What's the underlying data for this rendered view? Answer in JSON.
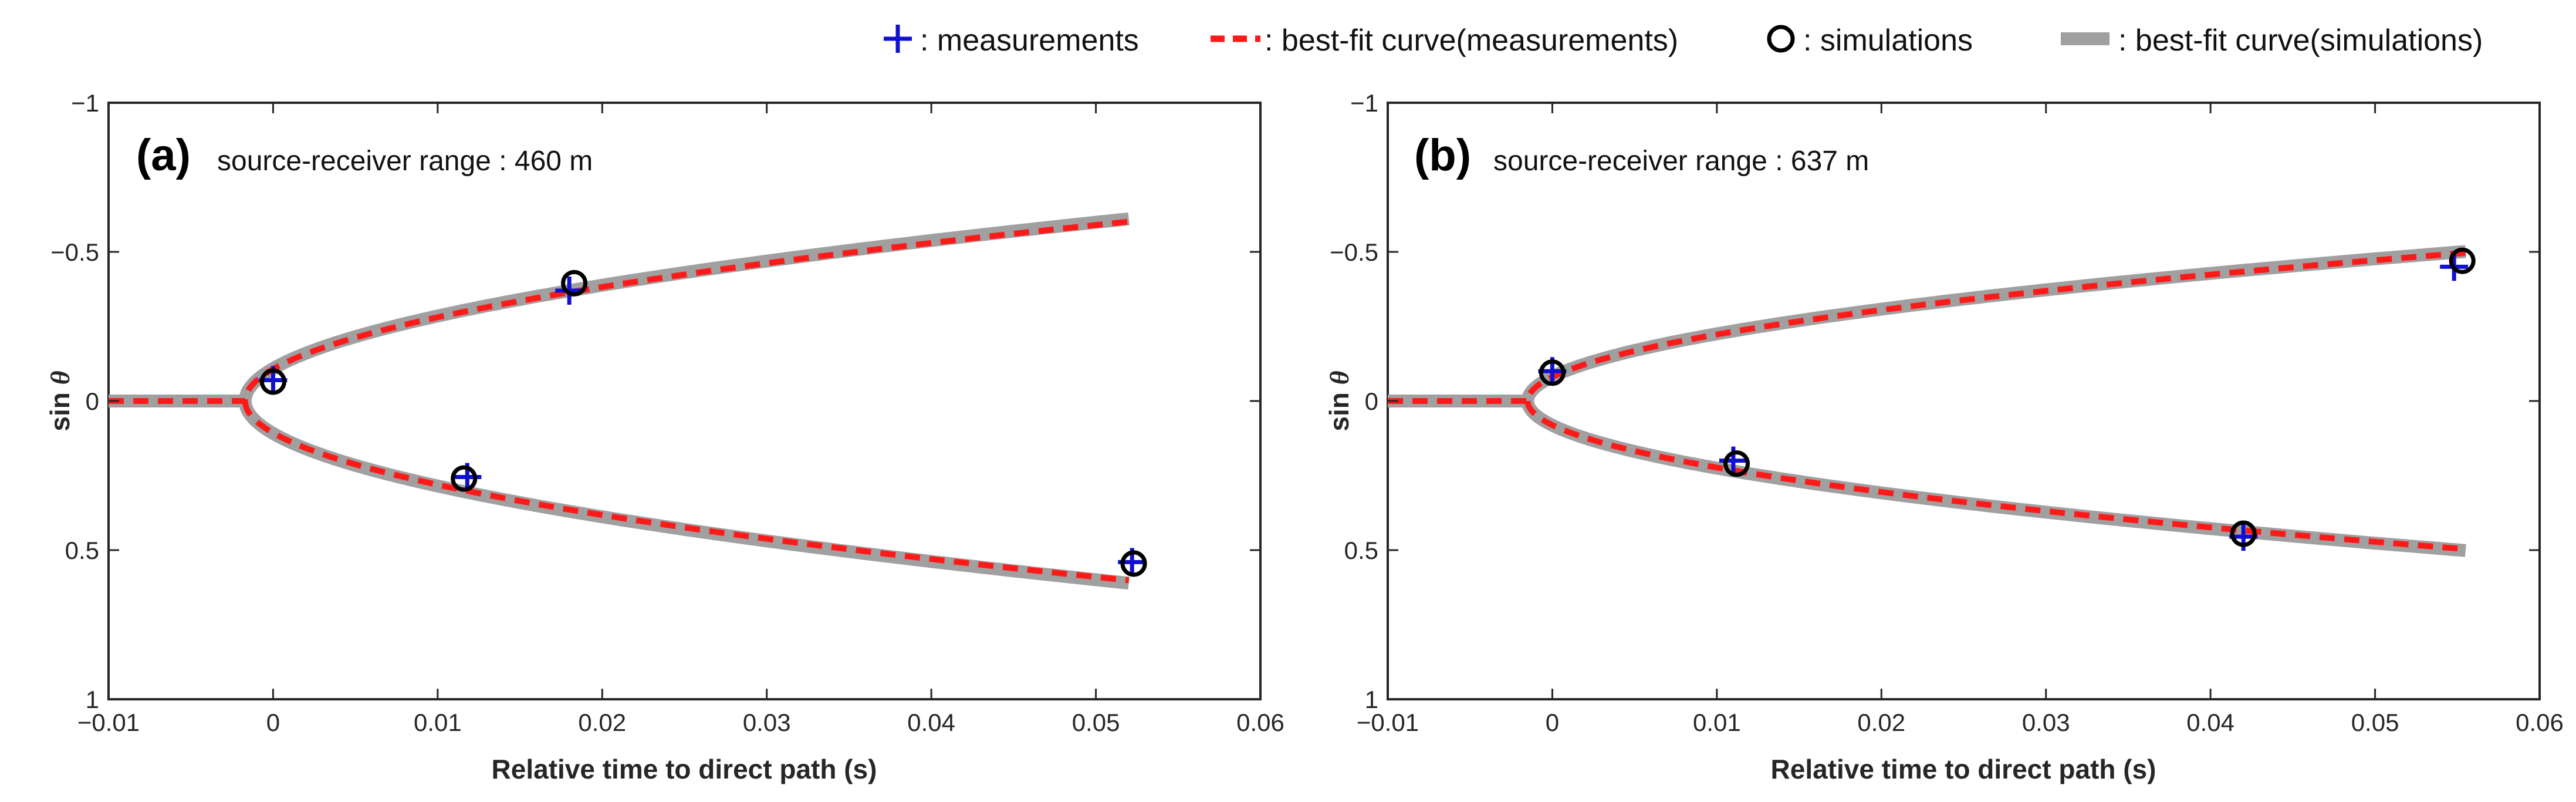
{
  "legend": {
    "placement": "top",
    "items": [
      {
        "marker": "plus",
        "color": "#1010d0",
        "label": ": measurements"
      },
      {
        "marker": "dashed-line",
        "color": "#ff1a1a",
        "label": ": best-fit curve(measurements)"
      },
      {
        "marker": "circle",
        "color": "#000000",
        "label": ": simulations"
      },
      {
        "marker": "thick-line",
        "color": "#a0a0a0",
        "label": ": best-fit curve(simulations)"
      }
    ]
  },
  "colors": {
    "measurement": "#1010d0",
    "fit_measurement": "#ff1a1a",
    "simulation": "#000000",
    "fit_simulation": "#a0a0a0",
    "axis": "#262626"
  },
  "chart_data": [
    {
      "type": "scatter",
      "panel": "(a)",
      "annotation": "source-receiver range : 460 m",
      "xlabel": "Relative time to direct path (s)",
      "ylabel": "sin θ",
      "ylabel_plain": "sin ",
      "ylabel_italic": "θ",
      "xlim": [
        -0.01,
        0.06
      ],
      "ylim": [
        -1,
        1
      ],
      "y_reversed": true,
      "xticks": [
        -0.01,
        0,
        0.01,
        0.02,
        0.03,
        0.04,
        0.05,
        0.06
      ],
      "xtick_labels": [
        "−0.01",
        "0",
        "0.01",
        "0.02",
        "0.03",
        "0.04",
        "0.05",
        "0.06"
      ],
      "yticks": [
        -1,
        -0.5,
        0,
        0.5,
        1
      ],
      "ytick_labels": [
        "−1",
        "−0.5",
        "0",
        "0.5",
        "1"
      ],
      "vertex_t": -0.0017,
      "t_end": 0.052,
      "fit_measurements": {
        "coef": 2.595
      },
      "fit_simulations": {
        "coef": 2.635
      },
      "measurements": [
        {
          "x": 0.0,
          "y": -0.07
        },
        {
          "x": 0.018,
          "y": -0.37
        },
        {
          "x": 0.0118,
          "y": 0.255
        },
        {
          "x": 0.0522,
          "y": 0.54
        }
      ],
      "simulations": [
        {
          "x": 0.0,
          "y": -0.065
        },
        {
          "x": 0.0183,
          "y": -0.395
        },
        {
          "x": 0.0116,
          "y": 0.26
        },
        {
          "x": 0.0523,
          "y": 0.545
        }
      ]
    },
    {
      "type": "scatter",
      "panel": "(b)",
      "annotation": "source-receiver range : 637 m",
      "xlabel": "Relative time to direct path (s)",
      "ylabel": "sin θ",
      "ylabel_plain": "sin ",
      "ylabel_italic": "θ",
      "xlim": [
        -0.01,
        0.06
      ],
      "ylim": [
        -1,
        1
      ],
      "y_reversed": true,
      "xticks": [
        -0.01,
        0,
        0.01,
        0.02,
        0.03,
        0.04,
        0.05,
        0.06
      ],
      "xtick_labels": [
        "−0.01",
        "0",
        "0.01",
        "0.02",
        "0.03",
        "0.04",
        "0.05",
        "0.06"
      ],
      "yticks": [
        -1,
        -0.5,
        0,
        0.5,
        1
      ],
      "ytick_labels": [
        "−1",
        "−0.5",
        "0",
        "0.5",
        "1"
      ],
      "vertex_t": -0.0015,
      "t_end": 0.0555,
      "fit_measurements": {
        "coef": 2.08
      },
      "fit_simulations": {
        "coef": 2.1
      },
      "measurements": [
        {
          "x": 0.0,
          "y": -0.1
        },
        {
          "x": 0.011,
          "y": 0.2
        },
        {
          "x": 0.042,
          "y": 0.455
        },
        {
          "x": 0.0548,
          "y": -0.45
        }
      ],
      "simulations": [
        {
          "x": 0.0,
          "y": -0.095
        },
        {
          "x": 0.0112,
          "y": 0.21
        },
        {
          "x": 0.042,
          "y": 0.445
        },
        {
          "x": 0.0553,
          "y": -0.47
        }
      ]
    }
  ]
}
